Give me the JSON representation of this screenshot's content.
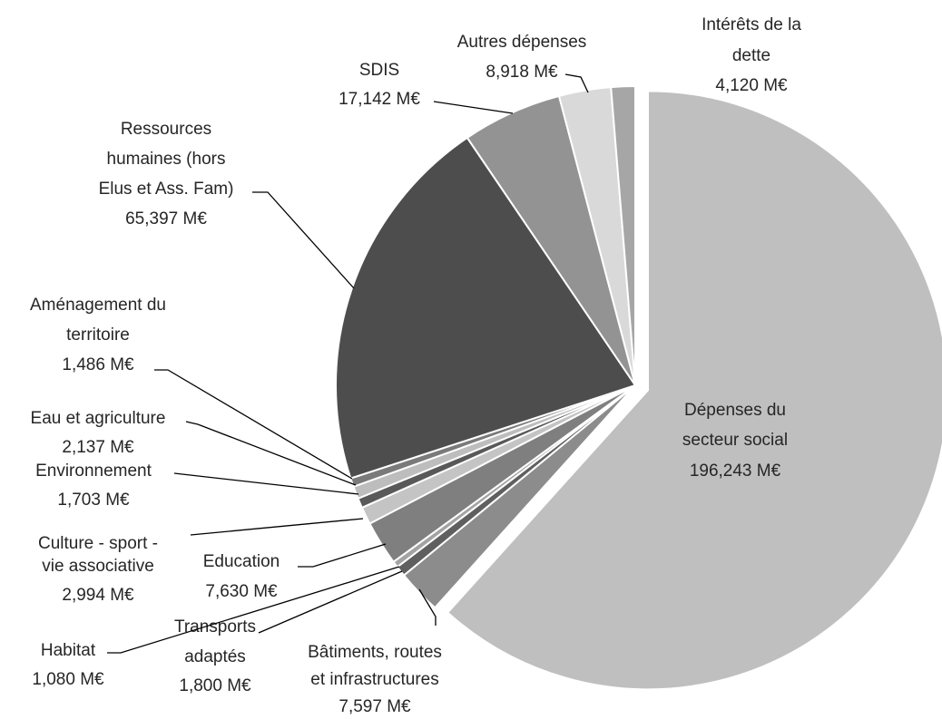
{
  "chart_data": {
    "type": "pie",
    "categories": [
      "Dépenses du secteur social",
      "Bâtiments, routes et infrastructures",
      "Transports adaptés",
      "Habitat",
      "Education",
      "Culture - sport - vie associative",
      "Environnement",
      "Eau et agriculture",
      "Aménagement du territoire",
      "Ressources humaines (hors Elus et Ass. Fam)",
      "SDIS",
      "Autres dépenses",
      "Intérêts de la dette"
    ],
    "values": [
      196.243,
      7.597,
      1.8,
      1.08,
      7.63,
      2.994,
      1.703,
      2.137,
      1.486,
      65.397,
      17.142,
      8.918,
      4.12
    ],
    "value_labels": [
      "196,243 M€",
      "7,597 M€",
      "1,800 M€",
      "1,080 M€",
      "7,630 M€",
      "2,994 M€",
      "1,703 M€",
      "2,137 M€",
      "1,486 M€",
      "65,397 M€",
      "17,142 M€",
      "8,918 M€",
      "4,120 M€"
    ],
    "colors": [
      "#bfbfbf",
      "#8c8c8c",
      "#5f5f5f",
      "#a3a3a3",
      "#7f7f7f",
      "#c4c4c4",
      "#595959",
      "#bdbdbd",
      "#7a7a7a",
      "#4d4d4d",
      "#939393",
      "#d9d9d9",
      "#a6a6a6"
    ]
  }
}
